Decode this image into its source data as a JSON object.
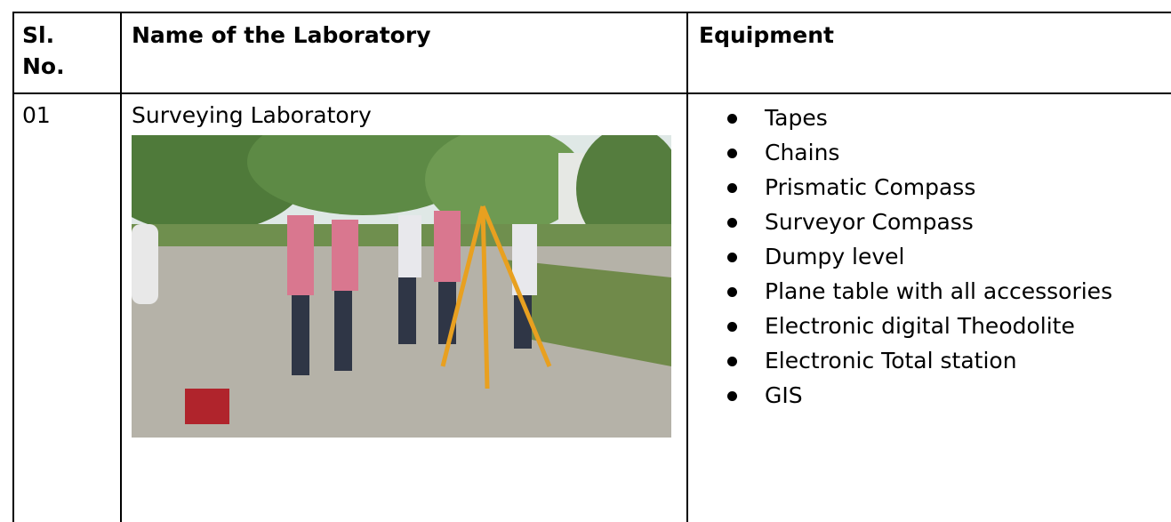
{
  "table": {
    "header": [
      "Sl. No.",
      "Name of the Laboratory",
      "Equipment"
    ],
    "rows": [
      {
        "serial": "01",
        "laboratory": "Surveying Laboratory",
        "equipment": [
          "Tapes",
          "Chains",
          "Prismatic Compass",
          "Surveyor Compass",
          "Dumpy level",
          "Plane table with all accessories",
          "Electronic digital Theodolite",
          "Electronic Total station",
          "GIS"
        ]
      }
    ]
  }
}
